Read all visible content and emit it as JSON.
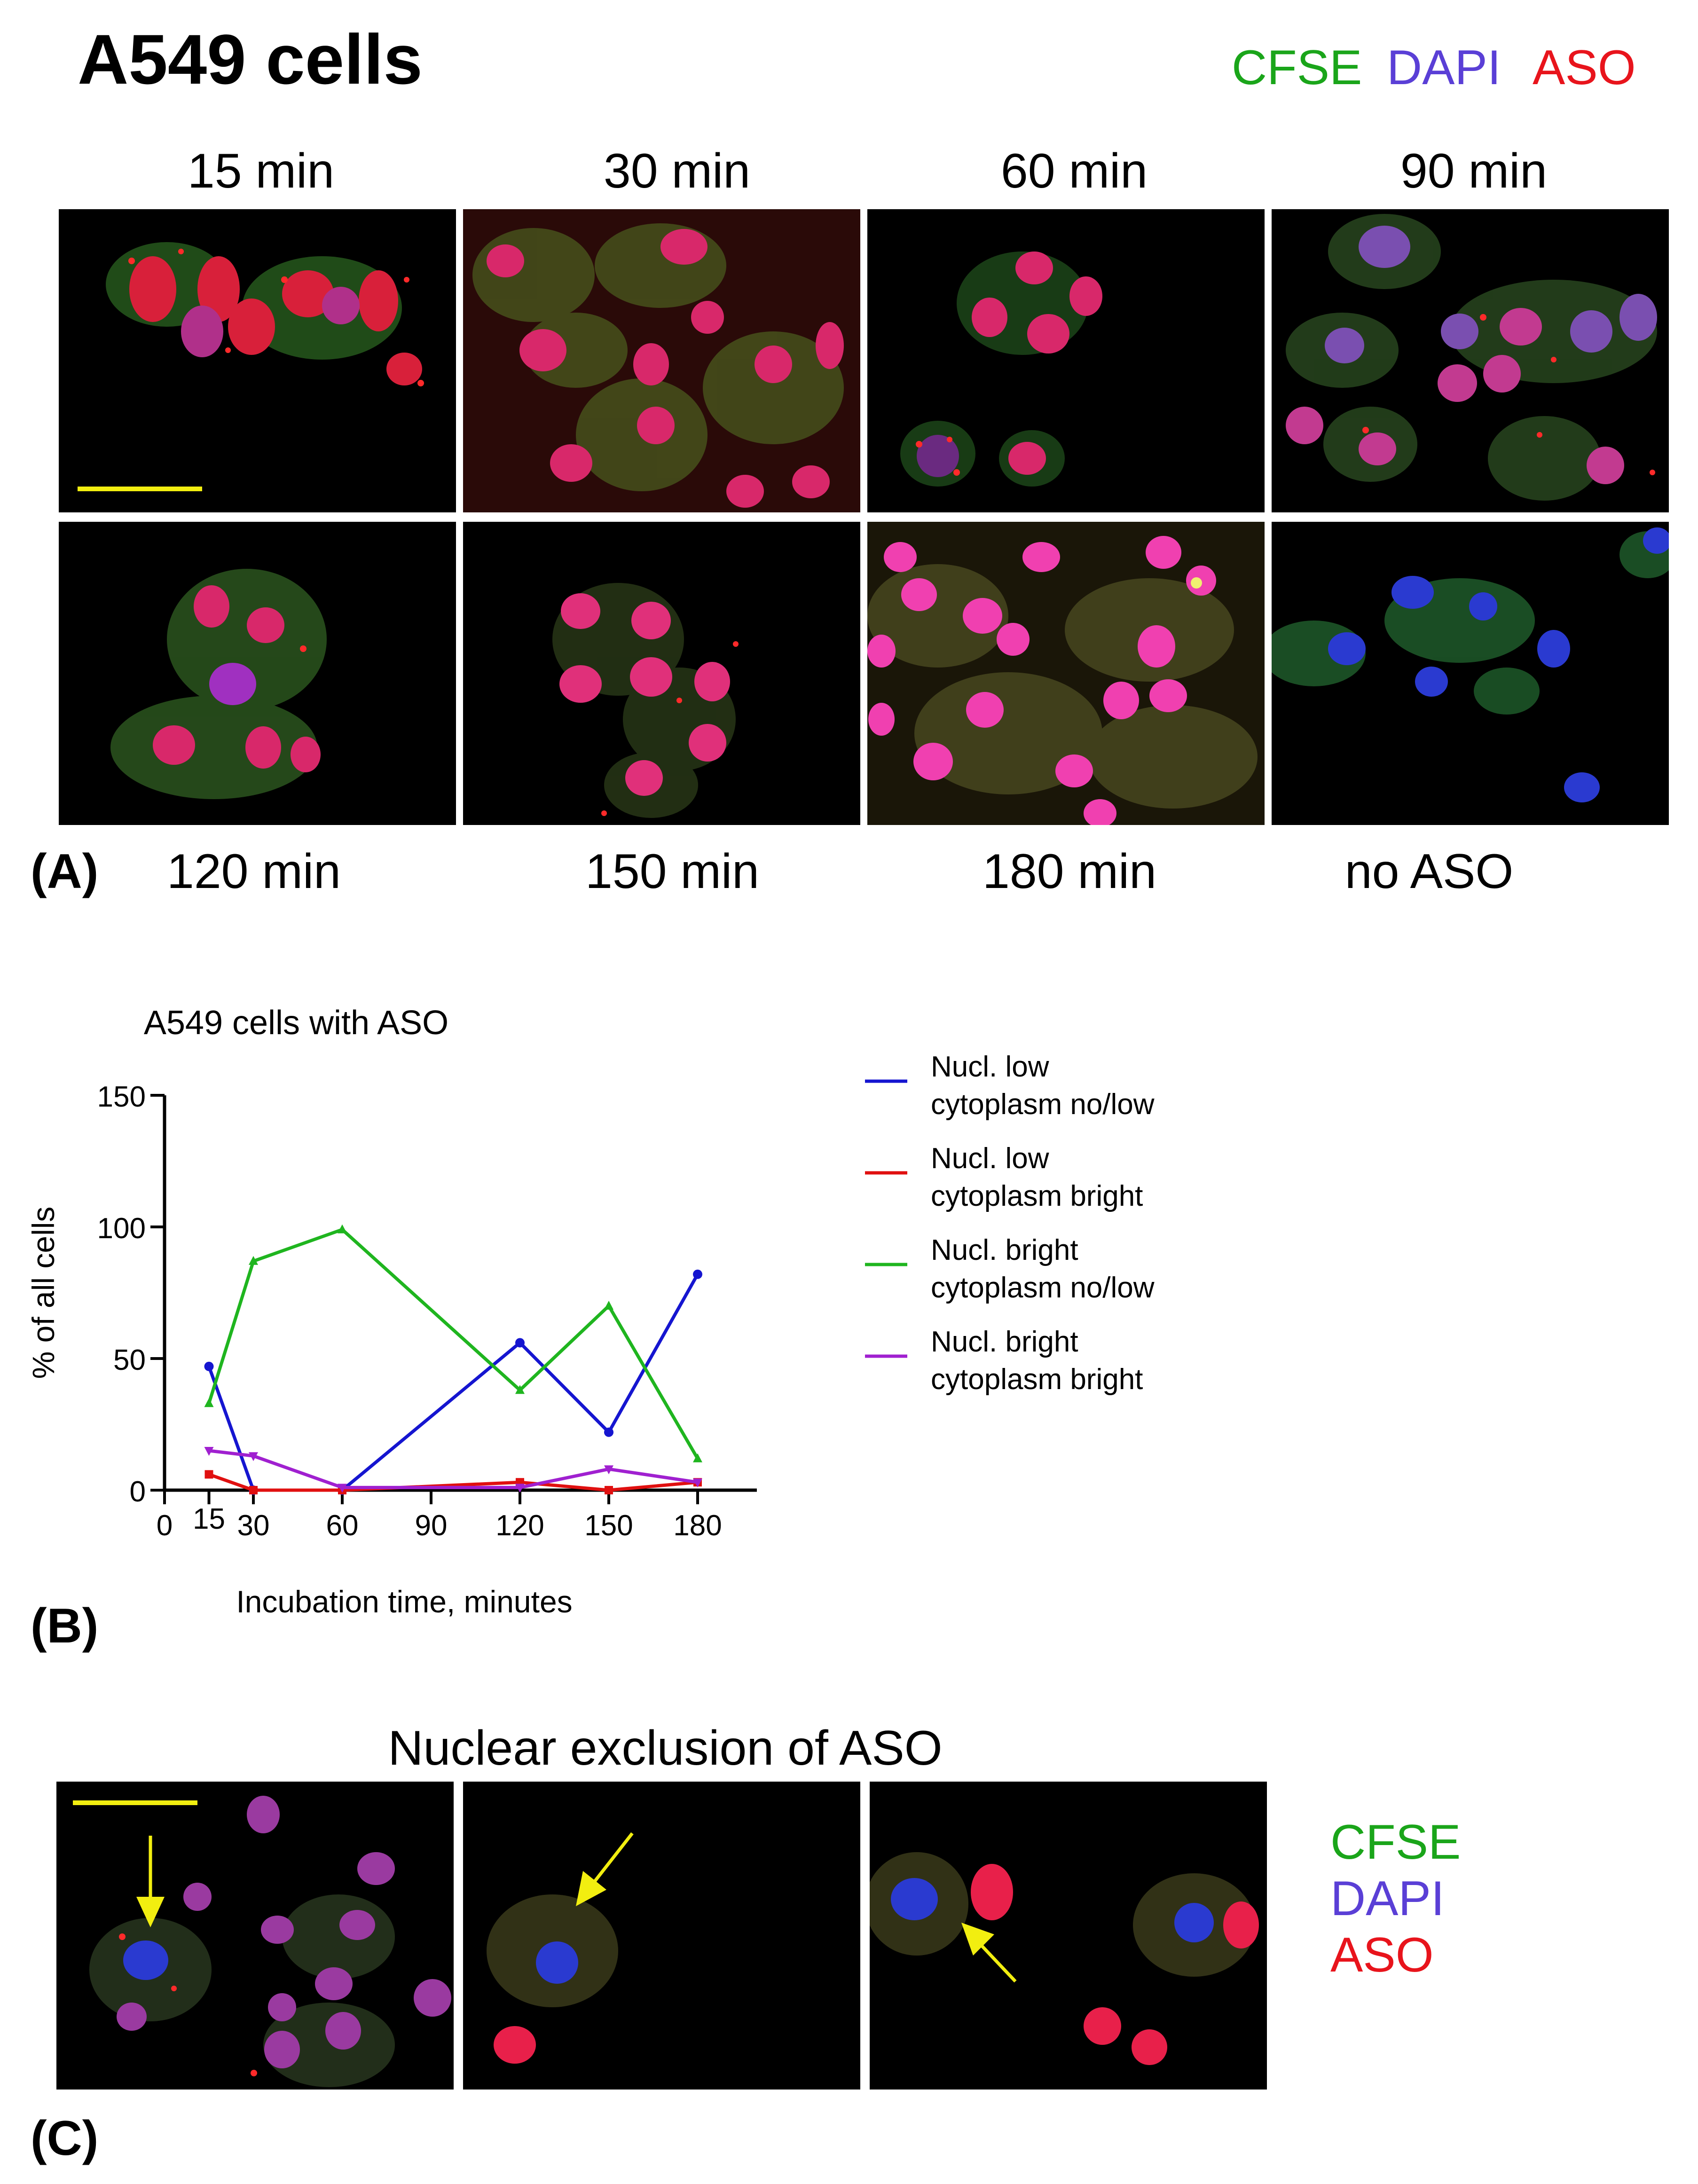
{
  "figure": {
    "title": "A549 cells",
    "channel_legend": [
      {
        "label": "CFSE",
        "color": "#1aa51a"
      },
      {
        "label": "DAPI",
        "color": "#5a3fd6"
      },
      {
        "label": "ASO",
        "color": "#e8141c"
      }
    ]
  },
  "panel_a": {
    "letter": "(A)",
    "top_row_labels": [
      "15 min",
      "30 min",
      "60 min",
      "90 min"
    ],
    "bottom_row_labels": [
      "120 min",
      "150 min",
      "180 min",
      "no ASO"
    ]
  },
  "panel_b": {
    "letter": "(B)"
  },
  "chart_data": {
    "type": "line",
    "title": "A549 cells with ASO",
    "xlabel": "Incubation time, minutes",
    "ylabel": "% of all cells",
    "xlim": [
      0,
      200
    ],
    "ylim": [
      0,
      150
    ],
    "xticks": [
      0,
      15,
      30,
      60,
      90,
      120,
      150,
      180
    ],
    "xtick_labels": [
      "0",
      "15",
      "30",
      "60",
      "90",
      "120",
      "150",
      "180"
    ],
    "yticks": [
      0,
      50,
      100,
      150
    ],
    "ytick_labels": [
      "0",
      "50",
      "100",
      "150"
    ],
    "x": [
      15,
      30,
      60,
      120,
      150,
      180
    ],
    "series": [
      {
        "name_line1": "Nucl. low",
        "name_line2": "cytoplasm no/low",
        "color": "#1515d0",
        "marker": "circle",
        "values": [
          47,
          0,
          0,
          56,
          22,
          82
        ]
      },
      {
        "name_line1": "Nucl. low",
        "name_line2": "cytoplasm bright",
        "color": "#e01010",
        "marker": "square",
        "values": [
          6,
          0,
          0,
          3,
          0,
          3
        ]
      },
      {
        "name_line1": "Nucl. bright",
        "name_line2": "cytoplasm no/low",
        "color": "#1fb51f",
        "marker": "triangle",
        "values": [
          33,
          87,
          99,
          38,
          70,
          12
        ]
      },
      {
        "name_line1": "Nucl. bright",
        "name_line2": "cytoplasm bright",
        "color": "#a020d0",
        "marker": "triangle-down",
        "values": [
          15,
          13,
          1,
          1,
          8,
          3
        ]
      }
    ]
  },
  "panel_c": {
    "letter": "(C)",
    "title": "Nuclear exclusion of ASO",
    "legend": [
      {
        "label": "CFSE",
        "color": "#1aa51a"
      },
      {
        "label": "DAPI",
        "color": "#5a3fd6"
      },
      {
        "label": "ASO",
        "color": "#e8141c"
      }
    ]
  }
}
